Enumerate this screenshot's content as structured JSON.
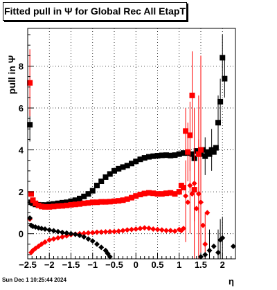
{
  "title": "Fitted pull in  Ψ  for Global Rec All EtapT",
  "footer": "Sun Dec  1 10:25:44 2024",
  "colors": {
    "black": "#000000",
    "red": "#ff0000",
    "background": "#ffffff"
  },
  "chart_data": {
    "type": "scatter",
    "title": "Fitted pull in  Ψ  for Global Rec All EtapT",
    "xlabel": "η",
    "ylabel": "pull in  Ψ",
    "xlim": [
      -2.5,
      2.3
    ],
    "ylim": [
      -1.2,
      9.8
    ],
    "x_ticks": [
      -2.5,
      -2,
      -1.5,
      -1,
      -0.5,
      0,
      0.5,
      1,
      1.5,
      2
    ],
    "x_tick_labels": [
      "−2.5",
      "−2",
      "−1.5",
      "−1",
      "−0.5",
      "0",
      "0.5",
      "1",
      "1.5",
      "2"
    ],
    "y_ticks": [
      0,
      2,
      4,
      6,
      8
    ],
    "y_tick_labels": [
      "0",
      "2",
      "4",
      "6",
      "8"
    ],
    "grid": true,
    "series": [
      {
        "color": "#000000",
        "marker": "square",
        "points": [
          [
            -2.45,
            5.2
          ],
          [
            -2.42,
            1.5
          ],
          [
            -2.38,
            1.45
          ],
          [
            -2.32,
            1.4
          ],
          [
            -2.25,
            1.38
          ],
          [
            -2.18,
            1.37
          ],
          [
            -2.1,
            1.37
          ],
          [
            -2.0,
            1.4
          ],
          [
            -1.9,
            1.42
          ],
          [
            -1.8,
            1.45
          ],
          [
            -1.7,
            1.48
          ],
          [
            -1.6,
            1.5
          ],
          [
            -1.5,
            1.55
          ],
          [
            -1.4,
            1.6
          ],
          [
            -1.3,
            1.68
          ],
          [
            -1.2,
            1.78
          ],
          [
            -1.1,
            1.9
          ],
          [
            -1.0,
            2.05
          ],
          [
            -0.9,
            2.3
          ],
          [
            -0.8,
            2.5
          ],
          [
            -0.7,
            2.7
          ],
          [
            -0.6,
            2.85
          ],
          [
            -0.5,
            3.0
          ],
          [
            -0.4,
            3.1
          ],
          [
            -0.3,
            3.18
          ],
          [
            -0.2,
            3.25
          ],
          [
            -0.1,
            3.35
          ],
          [
            0.0,
            3.45
          ],
          [
            0.1,
            3.55
          ],
          [
            0.2,
            3.62
          ],
          [
            0.3,
            3.67
          ],
          [
            0.4,
            3.7
          ],
          [
            0.5,
            3.72
          ],
          [
            0.6,
            3.74
          ],
          [
            0.7,
            3.75
          ],
          [
            0.8,
            3.73
          ],
          [
            0.9,
            3.75
          ],
          [
            1.0,
            3.8
          ],
          [
            1.1,
            3.85
          ],
          [
            1.2,
            3.85
          ],
          [
            1.3,
            3.8
          ],
          [
            1.35,
            3.6
          ],
          [
            1.4,
            3.95
          ],
          [
            1.45,
            3.9
          ],
          [
            1.5,
            3.8
          ],
          [
            1.55,
            4.0
          ],
          [
            1.6,
            3.7
          ],
          [
            1.65,
            3.9
          ],
          [
            1.7,
            3.8
          ],
          [
            1.75,
            4.0
          ],
          [
            1.8,
            3.9
          ],
          [
            1.85,
            4.1
          ],
          [
            1.9,
            5.3
          ],
          [
            1.95,
            6.3
          ],
          [
            2.0,
            8.4
          ],
          [
            2.05,
            7.4
          ]
        ],
        "error_bars": [
          [
            -2.45,
            4.4,
            5.9
          ],
          [
            1.5,
            2.6,
            5.2
          ],
          [
            1.6,
            2.8,
            4.6
          ],
          [
            1.75,
            3.0,
            5.0
          ],
          [
            1.9,
            4.0,
            6.6
          ],
          [
            1.95,
            5.2,
            7.4
          ],
          [
            2.0,
            7.3,
            9.5
          ],
          [
            2.05,
            6.5,
            8.3
          ]
        ]
      },
      {
        "color": "#ff0000",
        "marker": "square",
        "points": [
          [
            -2.45,
            7.2
          ],
          [
            -2.42,
            1.9
          ],
          [
            -2.38,
            1.6
          ],
          [
            -2.32,
            1.45
          ],
          [
            -2.25,
            1.35
          ],
          [
            -2.18,
            1.3
          ],
          [
            -2.1,
            1.28
          ],
          [
            -2.0,
            1.28
          ],
          [
            -1.9,
            1.3
          ],
          [
            -1.8,
            1.32
          ],
          [
            -1.7,
            1.33
          ],
          [
            -1.6,
            1.35
          ],
          [
            -1.5,
            1.38
          ],
          [
            -1.4,
            1.4
          ],
          [
            -1.3,
            1.42
          ],
          [
            -1.2,
            1.45
          ],
          [
            -1.1,
            1.47
          ],
          [
            -1.0,
            1.5
          ],
          [
            -0.9,
            1.5
          ],
          [
            -0.8,
            1.52
          ],
          [
            -0.7,
            1.52
          ],
          [
            -0.6,
            1.53
          ],
          [
            -0.5,
            1.55
          ],
          [
            -0.4,
            1.57
          ],
          [
            -0.3,
            1.6
          ],
          [
            -0.2,
            1.65
          ],
          [
            -0.1,
            1.72
          ],
          [
            0.0,
            1.8
          ],
          [
            0.1,
            1.87
          ],
          [
            0.2,
            1.92
          ],
          [
            0.3,
            1.95
          ],
          [
            0.4,
            1.93
          ],
          [
            0.5,
            1.9
          ],
          [
            0.6,
            1.9
          ],
          [
            0.7,
            1.93
          ],
          [
            0.8,
            1.95
          ],
          [
            0.9,
            1.9
          ],
          [
            1.0,
            2.0
          ],
          [
            1.05,
            2.3
          ],
          [
            1.1,
            2.2
          ],
          [
            1.15,
            4.9
          ],
          [
            1.2,
            3.9
          ],
          [
            1.25,
            4.7
          ],
          [
            1.3,
            6.6
          ],
          [
            1.35,
            2.1
          ],
          [
            1.45,
            3.8
          ],
          [
            1.5,
            4.0
          ]
        ],
        "error_bars": [
          [
            -2.45,
            5.6,
            8.8
          ],
          [
            1.15,
            3.9,
            6.0
          ],
          [
            1.2,
            2.5,
            5.3
          ],
          [
            1.25,
            3.0,
            6.3
          ],
          [
            1.3,
            4.8,
            8.7
          ],
          [
            1.35,
            0.6,
            3.6
          ],
          [
            1.45,
            1.0,
            6.6
          ],
          [
            1.5,
            0.2,
            8.2
          ]
        ]
      },
      {
        "color": "#ff0000",
        "marker": "diamond",
        "points": [
          [
            -2.45,
            0.7
          ],
          [
            -2.42,
            -0.9
          ],
          [
            -2.38,
            -0.8
          ],
          [
            -2.32,
            -0.7
          ],
          [
            -2.25,
            -0.6
          ],
          [
            -2.18,
            -0.5
          ],
          [
            -2.1,
            -0.4
          ],
          [
            -2.0,
            -0.3
          ],
          [
            -1.9,
            -0.25
          ],
          [
            -1.8,
            -0.2
          ],
          [
            -1.7,
            -0.15
          ],
          [
            -1.6,
            -0.1
          ],
          [
            -1.5,
            -0.05
          ],
          [
            -1.4,
            -0.02
          ],
          [
            -1.3,
            0.0
          ],
          [
            -1.2,
            0.02
          ],
          [
            -1.1,
            0.04
          ],
          [
            -1.0,
            0.05
          ],
          [
            -0.9,
            0.07
          ],
          [
            -0.8,
            0.08
          ],
          [
            -0.7,
            0.09
          ],
          [
            -0.6,
            0.1
          ],
          [
            -0.5,
            0.1
          ],
          [
            -0.4,
            0.12
          ],
          [
            -0.3,
            0.15
          ],
          [
            -0.2,
            0.18
          ],
          [
            -0.1,
            0.2
          ],
          [
            0.0,
            0.22
          ],
          [
            0.1,
            0.25
          ],
          [
            0.2,
            0.28
          ],
          [
            0.3,
            0.26
          ],
          [
            0.4,
            0.22
          ],
          [
            0.5,
            0.2
          ],
          [
            0.6,
            0.18
          ],
          [
            0.7,
            0.15
          ],
          [
            0.8,
            0.15
          ],
          [
            0.9,
            0.12
          ],
          [
            1.0,
            0.2
          ],
          [
            1.05,
            0.15
          ],
          [
            1.1,
            0.25
          ],
          [
            1.15,
            1.8
          ],
          [
            1.2,
            1.5
          ],
          [
            1.25,
            2.3
          ],
          [
            1.3,
            1.9
          ],
          [
            1.35,
            2.4
          ],
          [
            1.4,
            1.2
          ],
          [
            1.45,
            1.9
          ],
          [
            1.5,
            1.5
          ],
          [
            1.55,
            0.4
          ],
          [
            1.6,
            -0.5
          ],
          [
            1.65,
            1.0
          ]
        ],
        "error_bars": [
          [
            1.15,
            -0.4,
            3.5
          ],
          [
            1.25,
            0.0,
            4.0
          ],
          [
            1.35,
            -1.2,
            6.0
          ],
          [
            1.45,
            -1.2,
            4.5
          ],
          [
            1.5,
            -1.2,
            8.5
          ],
          [
            1.6,
            -1.2,
            1.0
          ]
        ]
      },
      {
        "color": "#000000",
        "marker": "diamond",
        "points": [
          [
            -2.45,
            0.75
          ],
          [
            -2.42,
            0.4
          ],
          [
            -2.38,
            0.35
          ],
          [
            -2.32,
            0.32
          ],
          [
            -2.25,
            0.28
          ],
          [
            -2.18,
            0.25
          ],
          [
            -2.1,
            0.22
          ],
          [
            -2.0,
            0.18
          ],
          [
            -1.9,
            0.14
          ],
          [
            -1.8,
            0.1
          ],
          [
            -1.7,
            0.06
          ],
          [
            -1.6,
            0.03
          ],
          [
            -1.5,
            0.0
          ],
          [
            -1.4,
            -0.03
          ],
          [
            -1.3,
            -0.08
          ],
          [
            -1.2,
            -0.15
          ],
          [
            -1.1,
            -0.25
          ],
          [
            -1.0,
            -0.35
          ],
          [
            -0.9,
            -0.5
          ],
          [
            -0.8,
            -0.65
          ],
          [
            -0.7,
            -0.8
          ],
          [
            -0.65,
            -0.95
          ],
          [
            -0.6,
            -1.1
          ],
          [
            1.5,
            -1.1
          ],
          [
            1.6,
            -1.0
          ],
          [
            1.7,
            -0.8
          ],
          [
            1.8,
            -0.6
          ],
          [
            1.9,
            -0.9
          ],
          [
            1.95,
            -0.3
          ],
          [
            2.0,
            -0.2
          ],
          [
            2.25,
            -0.6
          ]
        ],
        "error_bars": [
          [
            1.7,
            -1.2,
            0.2
          ],
          [
            1.9,
            -1.2,
            0.2
          ],
          [
            1.95,
            -1.2,
            0.7
          ],
          [
            2.0,
            -1.2,
            0.8
          ]
        ]
      }
    ]
  }
}
